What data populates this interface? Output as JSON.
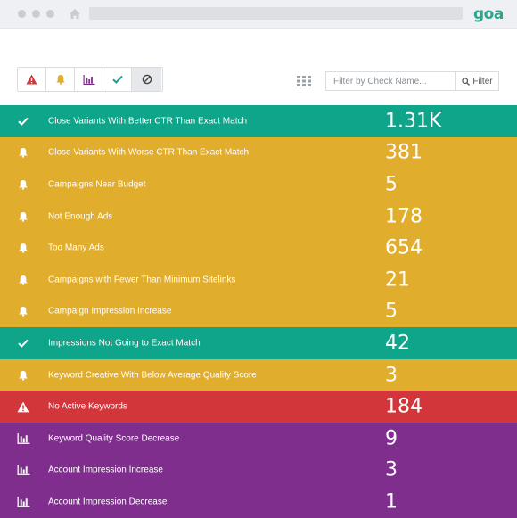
{
  "browser": {
    "logo": "goa"
  },
  "toolbar": {
    "search_placeholder": "Filter by Check Name...",
    "filter_label": "Filter"
  },
  "colors": {
    "success": "#0ea58a",
    "warning": "#e1ad2c",
    "danger": "#d2363b",
    "info": "#7f2e8e"
  },
  "rows": [
    {
      "status": "success",
      "icon": "check-icon",
      "label": "Close Variants With Better CTR Than Exact Match",
      "value": "1.31K"
    },
    {
      "status": "warning",
      "icon": "bell-icon",
      "label": "Close Variants With Worse CTR Than Exact Match",
      "value": "381"
    },
    {
      "status": "warning",
      "icon": "bell-icon",
      "label": "Campaigns Near Budget",
      "value": "5"
    },
    {
      "status": "warning",
      "icon": "bell-icon",
      "label": "Not Enough Ads",
      "value": "178"
    },
    {
      "status": "warning",
      "icon": "bell-icon",
      "label": "Too Many Ads",
      "value": "654"
    },
    {
      "status": "warning",
      "icon": "bell-icon",
      "label": "Campaigns with Fewer Than Minimum Sitelinks",
      "value": "21"
    },
    {
      "status": "warning",
      "icon": "bell-icon",
      "label": "Campaign Impression Increase",
      "value": "5"
    },
    {
      "status": "success",
      "icon": "check-icon",
      "label": "Impressions Not Going to Exact Match",
      "value": "42"
    },
    {
      "status": "warning",
      "icon": "bell-icon",
      "label": "Keyword Creative With Below Average Quality Score",
      "value": "3"
    },
    {
      "status": "danger",
      "icon": "alert-icon",
      "label": "No Active Keywords",
      "value": "184"
    },
    {
      "status": "info",
      "icon": "bar-chart-icon",
      "label": "Keyword Quality Score Decrease",
      "value": "9"
    },
    {
      "status": "info",
      "icon": "bar-chart-icon",
      "label": "Account Impression Increase",
      "value": "3"
    },
    {
      "status": "info",
      "icon": "bar-chart-icon",
      "label": "Account Impression Decrease",
      "value": "1"
    }
  ]
}
